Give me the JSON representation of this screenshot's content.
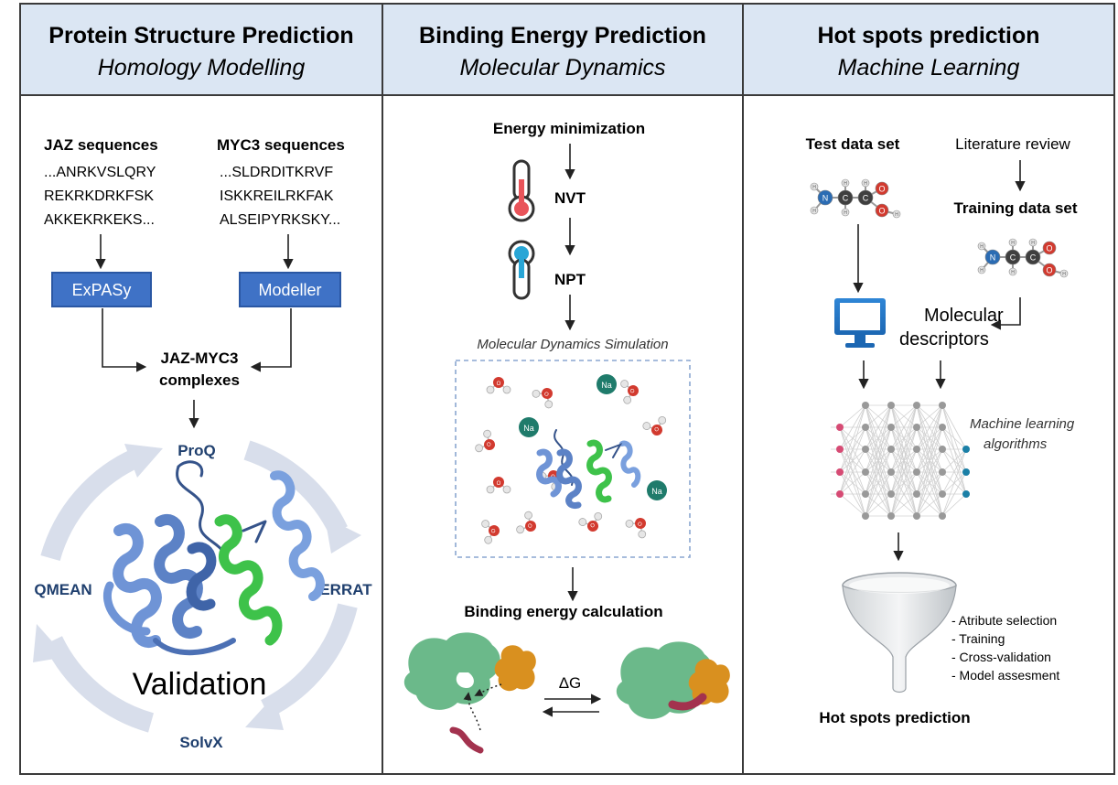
{
  "panels": [
    {
      "title": "Protein Structure Prediction",
      "subtitle": "Homology Modelling",
      "jaz": {
        "heading": "JAZ sequences",
        "lines": [
          "...ANRKVSLQRY",
          "REKRKDRKFSK",
          "AKKEKRKEKS..."
        ]
      },
      "myc": {
        "heading": "MYC3 sequences",
        "lines": [
          "...SLDRDITKRVF",
          "ISKKREILRKFAK",
          "ALSEIPYRKSKY..."
        ]
      },
      "tools": [
        "ExPASy",
        "Modeller"
      ],
      "complex_lines": [
        "JAZ-MYC3",
        "complexes"
      ],
      "cycle_labels": {
        "top": "ProQ",
        "right": "ERRAT",
        "bottom": "SolvX",
        "left": "QMEAN"
      },
      "center_label": "Validation"
    },
    {
      "title": "Binding Energy Prediction",
      "subtitle": "Molecular Dynamics",
      "steps": [
        "Energy minimization",
        "NVT",
        "NPT"
      ],
      "simulation_label": "Molecular Dynamics Simulation",
      "ion_label": "Na",
      "water_atoms": {
        "oxygen": "O",
        "hydrogen": "H"
      },
      "calc_label": "Binding energy calculation",
      "delta_label": "ΔG"
    },
    {
      "title": "Hot spots prediction",
      "subtitle": "Machine Learning",
      "test_label": "Test data set",
      "lit_label": "Literature review",
      "training_label": "Training data set",
      "molecule_atoms": {
        "n": "N",
        "c": "C",
        "o": "O",
        "h": "H"
      },
      "descriptor_lines": [
        "Molecular",
        "descriptors"
      ],
      "ml_lines": [
        "Machine learning",
        "algorithms"
      ],
      "steps_list": [
        "- Atribute selection",
        "- Training",
        "- Cross-validation",
        "- Model assesment"
      ],
      "final_label": "Hot spots prediction"
    }
  ],
  "colors": {
    "header_bg": "#dbe6f3",
    "tool_box": "#3f72c6",
    "tool_box_border": "#2a57a3",
    "dark_blue_text": "#1f3f6e",
    "cycle_arrow": "#d8deeb",
    "protein_blue": "#6f94d6",
    "protein_green": "#3ec24a",
    "oxygen": "#d23a2f",
    "ion": "#1f7b6b",
    "blob_green": "#6bb98a",
    "ligand_orange": "#d9901f",
    "peptide": "#a3324e",
    "node_pink": "#d64b74",
    "node_teal": "#1a7fa6"
  },
  "icons": [
    "thermometer-hot-icon",
    "thermometer-cold-icon",
    "computer-monitor-icon",
    "funnel-icon",
    "neural-network-icon",
    "molecule-icon",
    "water-molecule-icon"
  ]
}
